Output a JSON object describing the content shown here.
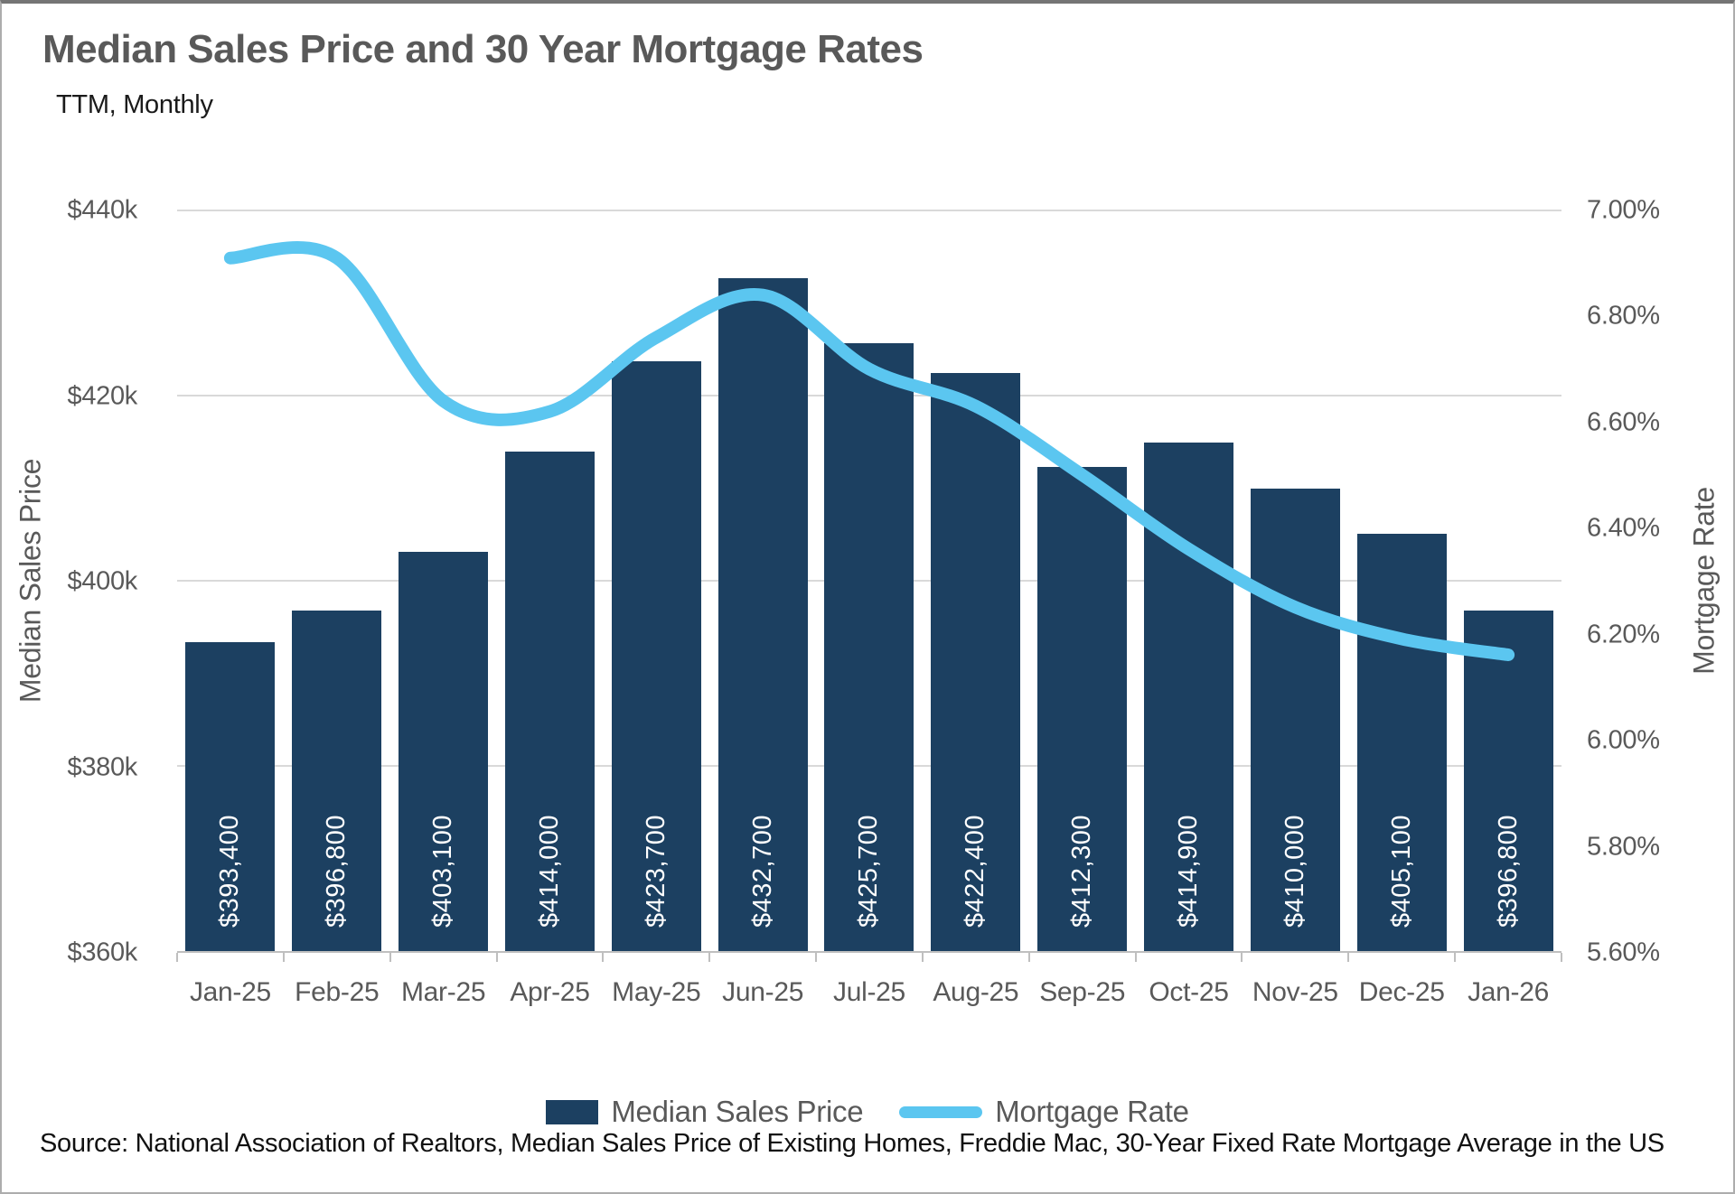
{
  "page": {
    "title": "Median Sales Price and 30 Year Mortgage Rates",
    "subtitle": "TTM, Monthly",
    "source": "Source: National Association of Realtors, Median Sales Price of Existing Homes, Freddie Mac, 30-Year Fixed Rate Mortgage Average in the US"
  },
  "legend": {
    "bar_label": "Median Sales Price",
    "line_label": "Mortgage Rate"
  },
  "colors": {
    "bar": "#1c4061",
    "line": "#5bc6f0",
    "gridline": "#d9d9d9",
    "axis_line": "#bfbfbf",
    "tick_text": "#595959",
    "title_text": "#595959",
    "bar_value_text": "#ffffff",
    "source_text": "#111111"
  },
  "chart_data": {
    "type": "bar",
    "subtype": "combo-bar-line-dual-axis",
    "title": "Median Sales Price and 30 Year Mortgage Rates",
    "subtitle": "TTM, Monthly",
    "grid": "horizontal gridlines at left-axis ticks",
    "legend_position": "bottom-center",
    "categories": [
      "Jan-25",
      "Feb-25",
      "Mar-25",
      "Apr-25",
      "May-25",
      "Jun-25",
      "Jul-25",
      "Aug-25",
      "Sep-25",
      "Oct-25",
      "Nov-25",
      "Dec-25",
      "Jan-26"
    ],
    "series": [
      {
        "name": "Median Sales Price",
        "type": "bar",
        "axis": "left",
        "values": [
          393400,
          396800,
          403100,
          414000,
          423700,
          432700,
          425700,
          422400,
          412300,
          414900,
          410000,
          405100,
          396800
        ],
        "data_labels": [
          "$393,400",
          "$396,800",
          "$403,100",
          "$414,000",
          "$423,700",
          "$432,700",
          "$425,700",
          "$422,400",
          "$412,300",
          "$414,900",
          "$410,000",
          "$405,100",
          "$396,800"
        ]
      },
      {
        "name": "Mortgage Rate",
        "type": "line",
        "axis": "right",
        "smoothed": true,
        "values_percent": [
          6.91,
          6.91,
          6.64,
          6.62,
          6.76,
          6.84,
          6.7,
          6.63,
          6.5,
          6.36,
          6.25,
          6.19,
          6.16
        ]
      }
    ],
    "left_axis": {
      "title": "Median Sales Price",
      "min": 360000,
      "max": 440000,
      "tick_step": 20000,
      "tick_labels_top_to_bottom": [
        "$440k",
        "$420k",
        "$400k",
        "$380k",
        "$360k"
      ]
    },
    "right_axis": {
      "title": "Mortgage Rate",
      "min": 5.6,
      "max": 7.0,
      "tick_step": 0.2,
      "tick_labels_top_to_bottom": [
        "7.00%",
        "6.80%",
        "6.60%",
        "6.40%",
        "6.20%",
        "6.00%",
        "5.80%",
        "5.60%"
      ]
    }
  }
}
